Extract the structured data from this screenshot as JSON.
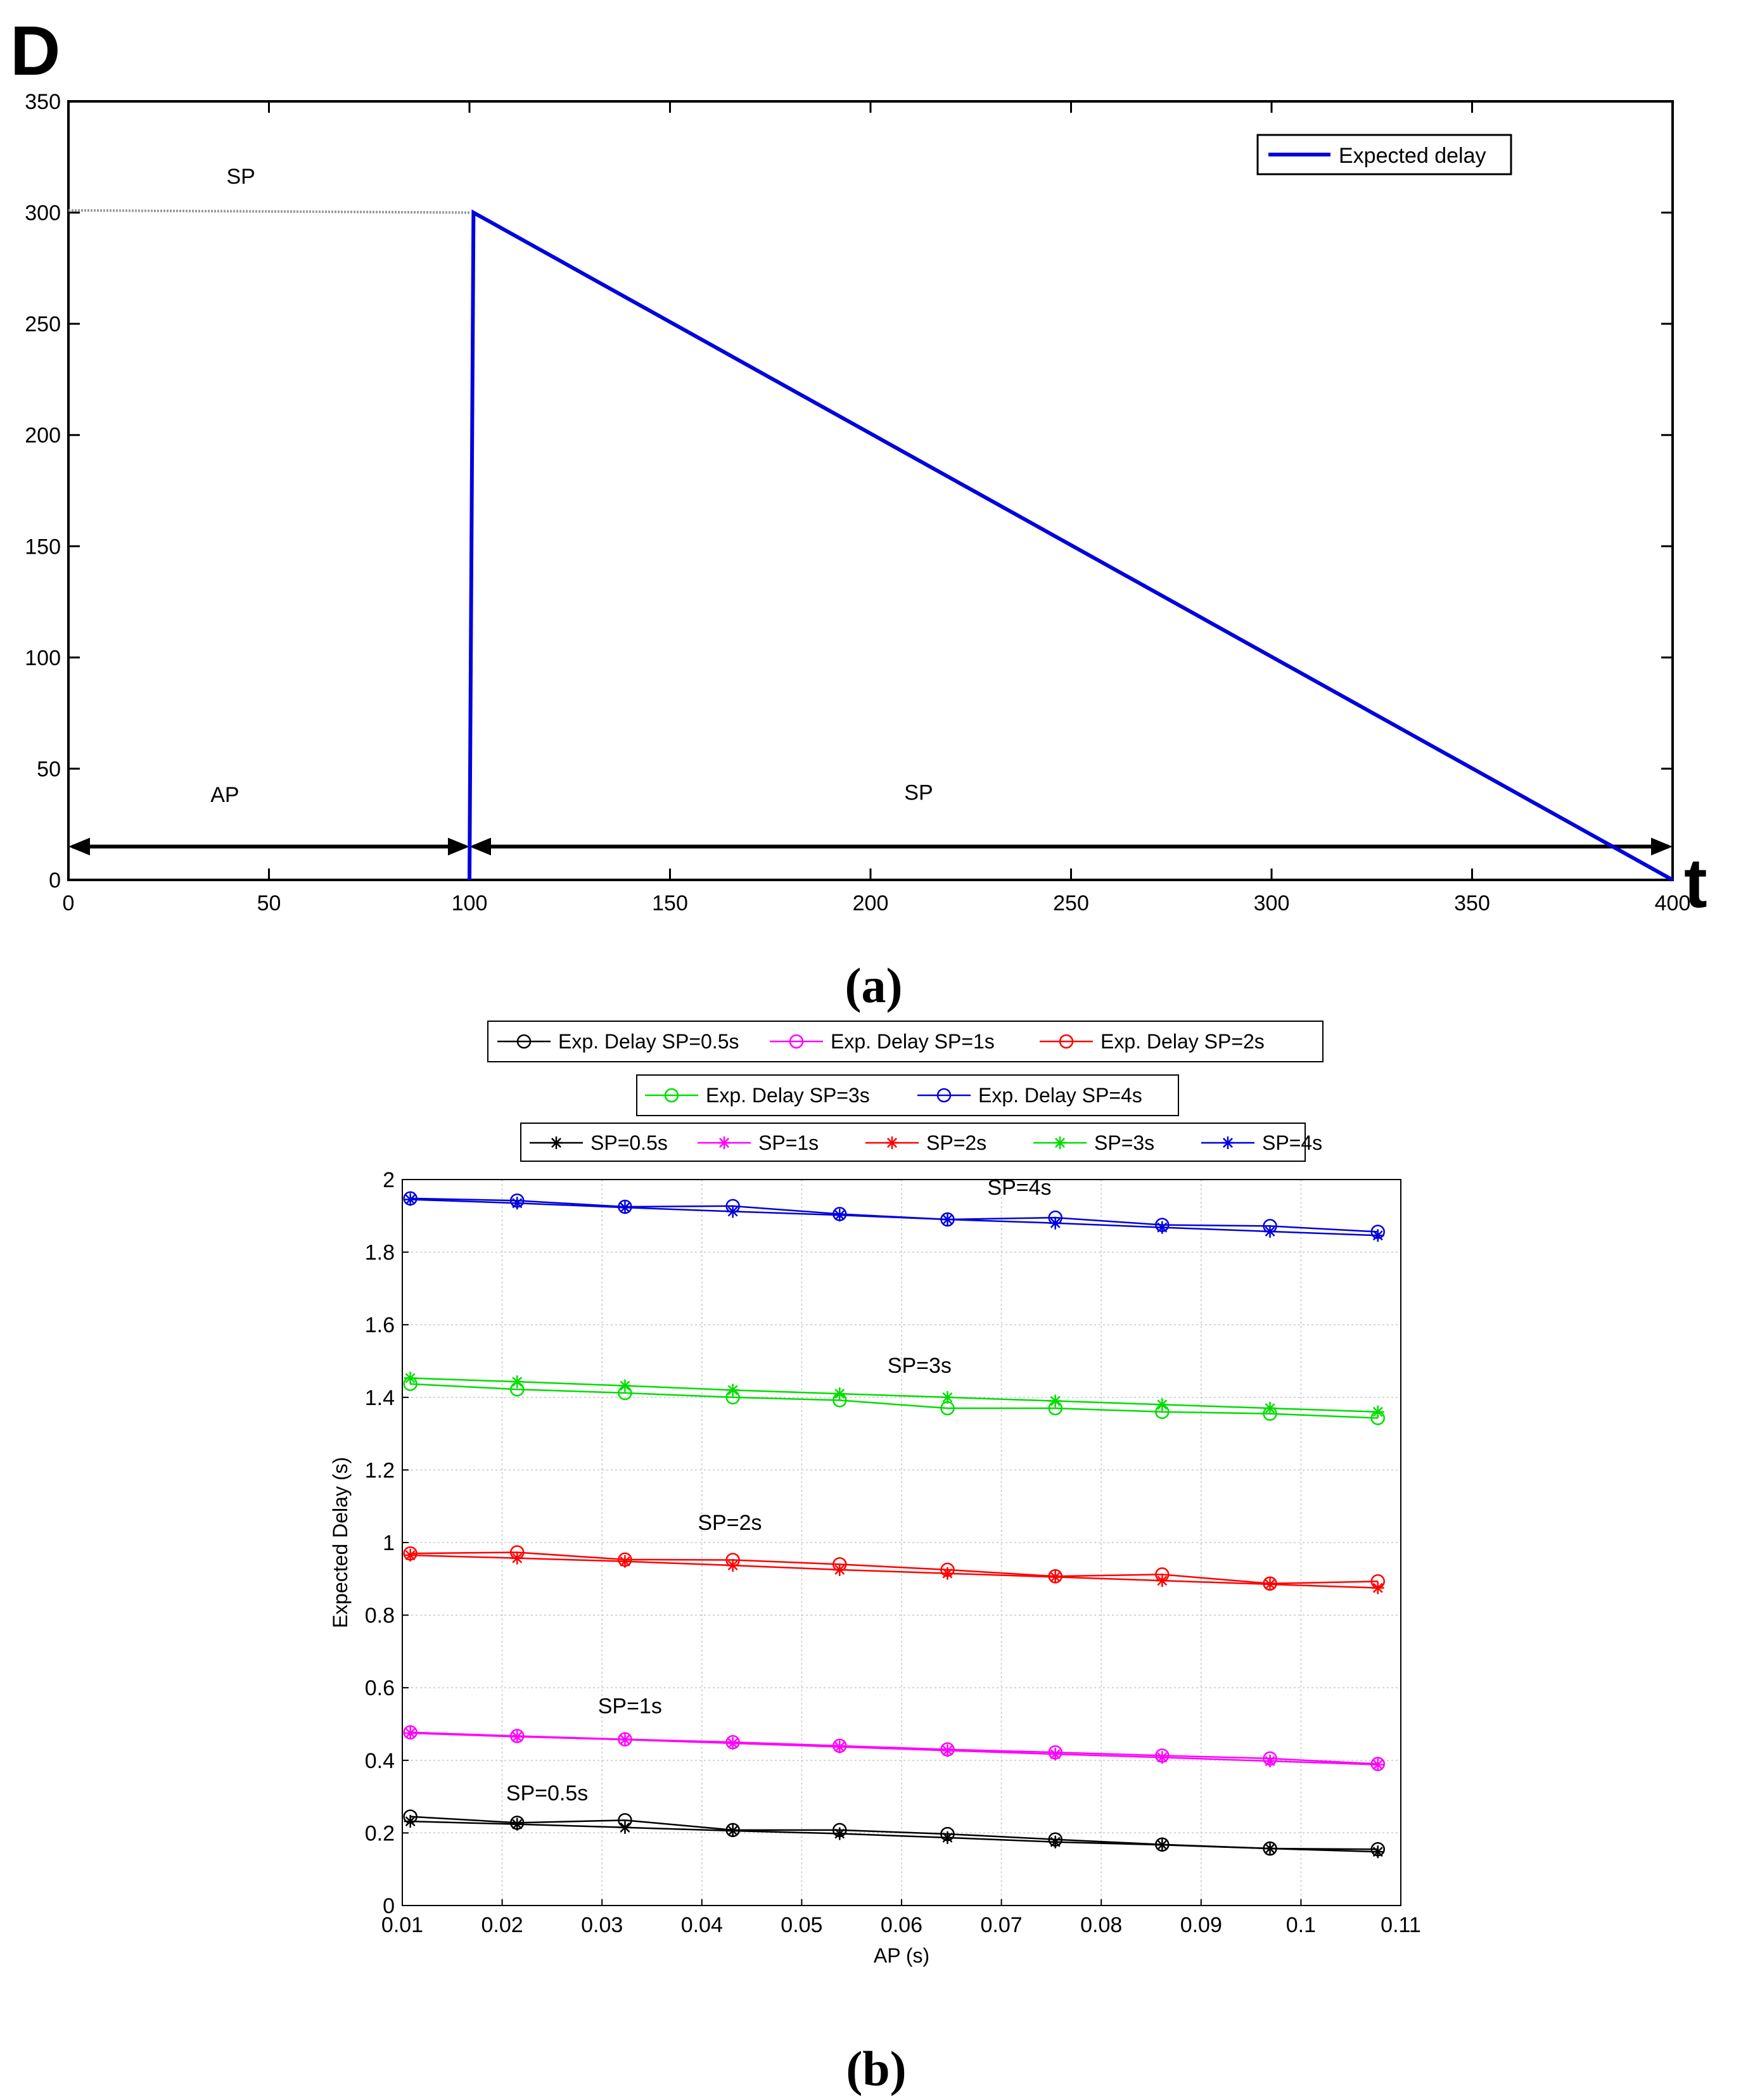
{
  "chart_data": [
    {
      "type": "line",
      "panel_label": "(a)",
      "ylabel": "D",
      "xlabel": "t",
      "xlim": [
        0,
        400
      ],
      "ylim": [
        0,
        350
      ],
      "xticks": [
        0,
        50,
        100,
        150,
        200,
        250,
        300,
        350,
        400
      ],
      "yticks": [
        0,
        50,
        100,
        150,
        200,
        250,
        300,
        350
      ],
      "grid": false,
      "legend_position": "top-right",
      "series": [
        {
          "name": "Expected delay",
          "color": "#0000dd",
          "x": [
            100,
            100,
            101,
            400
          ],
          "y": [
            0,
            0,
            300,
            0
          ]
        }
      ],
      "reference_line": {
        "x": [
          0,
          100
        ],
        "y": [
          301,
          300
        ],
        "color": "#9a9a9a"
      },
      "annotations": [
        {
          "text": "SP",
          "x": 43,
          "y": 313
        },
        {
          "text": "AP",
          "x": 39,
          "y": 35
        },
        {
          "text": "SP",
          "x": 212,
          "y": 36
        }
      ],
      "arrows": [
        {
          "from": [
            0,
            15
          ],
          "to": [
            100,
            15
          ]
        },
        {
          "from": [
            100,
            15
          ],
          "to": [
            400,
            15
          ]
        }
      ]
    },
    {
      "type": "line",
      "panel_label": "(b)",
      "xlabel": "AP (s)",
      "ylabel": "Expected Delay (s)",
      "xlim": [
        0.01,
        0.11
      ],
      "ylim": [
        0,
        2
      ],
      "xticks": [
        0.01,
        0.02,
        0.03,
        0.04,
        0.05,
        0.06,
        0.07,
        0.08,
        0.09,
        0.1,
        0.11
      ],
      "xtick_labels": [
        "0.01",
        "0.02",
        "0.03",
        "0.04",
        "0.05",
        "0.06",
        "0.07",
        "0.08",
        "0.09",
        "0.1",
        "0.11"
      ],
      "yticks": [
        0,
        0.2,
        0.4,
        0.6,
        0.8,
        1,
        1.2,
        1.4,
        1.6,
        1.8,
        2
      ],
      "ytick_labels": [
        "0",
        "0.2",
        "0.4",
        "0.6",
        "0.8",
        "1",
        "1.2",
        "1.4",
        "1.6",
        "1.8",
        "2"
      ],
      "grid": true,
      "legend_position": "top-center",
      "x": [
        0.0108,
        0.0215,
        0.0323,
        0.0431,
        0.0538,
        0.0646,
        0.0754,
        0.0861,
        0.0969,
        0.1077
      ],
      "series": [
        {
          "name": "Exp. Delay SP=0.5s",
          "color": "#000000",
          "marker": "circle",
          "values": [
            0.245,
            0.228,
            0.235,
            0.208,
            0.208,
            0.197,
            0.182,
            0.168,
            0.157,
            0.155
          ]
        },
        {
          "name": "Exp. Delay SP=1s",
          "color": "#ff00ff",
          "marker": "circle",
          "values": [
            0.477,
            0.467,
            0.458,
            0.45,
            0.44,
            0.43,
            0.422,
            0.413,
            0.405,
            0.39
          ]
        },
        {
          "name": "Exp. Delay SP=2s",
          "color": "#ff0000",
          "marker": "circle",
          "values": [
            0.97,
            0.973,
            0.953,
            0.952,
            0.94,
            0.925,
            0.907,
            0.912,
            0.887,
            0.893
          ]
        },
        {
          "name": "Exp. Delay SP=3s",
          "color": "#00dd00",
          "marker": "circle",
          "values": [
            1.437,
            1.422,
            1.412,
            1.4,
            1.392,
            1.37,
            1.37,
            1.36,
            1.355,
            1.343
          ]
        },
        {
          "name": "Exp. Delay SP=4s",
          "color": "#0000dd",
          "marker": "circle",
          "values": [
            1.948,
            1.942,
            1.925,
            1.927,
            1.905,
            1.89,
            1.895,
            1.875,
            1.872,
            1.856
          ]
        },
        {
          "name": "SP=0.5s",
          "color": "#000000",
          "marker": "star",
          "values": [
            0.232,
            0.224,
            0.215,
            0.206,
            0.198,
            0.187,
            0.175,
            0.167,
            0.157,
            0.148
          ]
        },
        {
          "name": "SP=1s",
          "color": "#ff00ff",
          "marker": "star",
          "values": [
            0.475,
            0.465,
            0.457,
            0.447,
            0.437,
            0.427,
            0.417,
            0.408,
            0.398,
            0.388
          ]
        },
        {
          "name": "SP=2s",
          "color": "#ff0000",
          "marker": "star",
          "values": [
            0.965,
            0.957,
            0.948,
            0.937,
            0.925,
            0.915,
            0.905,
            0.895,
            0.885,
            0.875
          ]
        },
        {
          "name": "SP=3s",
          "color": "#00dd00",
          "marker": "star",
          "values": [
            1.453,
            1.443,
            1.432,
            1.42,
            1.41,
            1.4,
            1.39,
            1.38,
            1.37,
            1.36
          ]
        },
        {
          "name": "SP=4s",
          "color": "#0000dd",
          "marker": "star",
          "values": [
            1.945,
            1.935,
            1.923,
            1.912,
            1.902,
            1.89,
            1.88,
            1.868,
            1.857,
            1.846
          ]
        }
      ],
      "annotations": [
        {
          "text": "SP=4s",
          "x": 0.0718,
          "y": 1.958
        },
        {
          "text": "SP=3s",
          "x": 0.0618,
          "y": 1.468
        },
        {
          "text": "SP=2s",
          "x": 0.0428,
          "y": 1.035
        },
        {
          "text": "SP=1s",
          "x": 0.0328,
          "y": 0.53
        },
        {
          "text": "SP=0.5s",
          "x": 0.0245,
          "y": 0.29
        }
      ],
      "legend_rows": [
        [
          "Exp. Delay SP=0.5s",
          "Exp. Delay SP=1s",
          "Exp. Delay SP=2s"
        ],
        [
          "Exp. Delay SP=3s",
          "Exp. Delay SP=4s"
        ],
        [
          "SP=0.5s",
          "SP=1s",
          "SP=2s",
          "SP=3s",
          "SP=4s"
        ]
      ]
    }
  ]
}
